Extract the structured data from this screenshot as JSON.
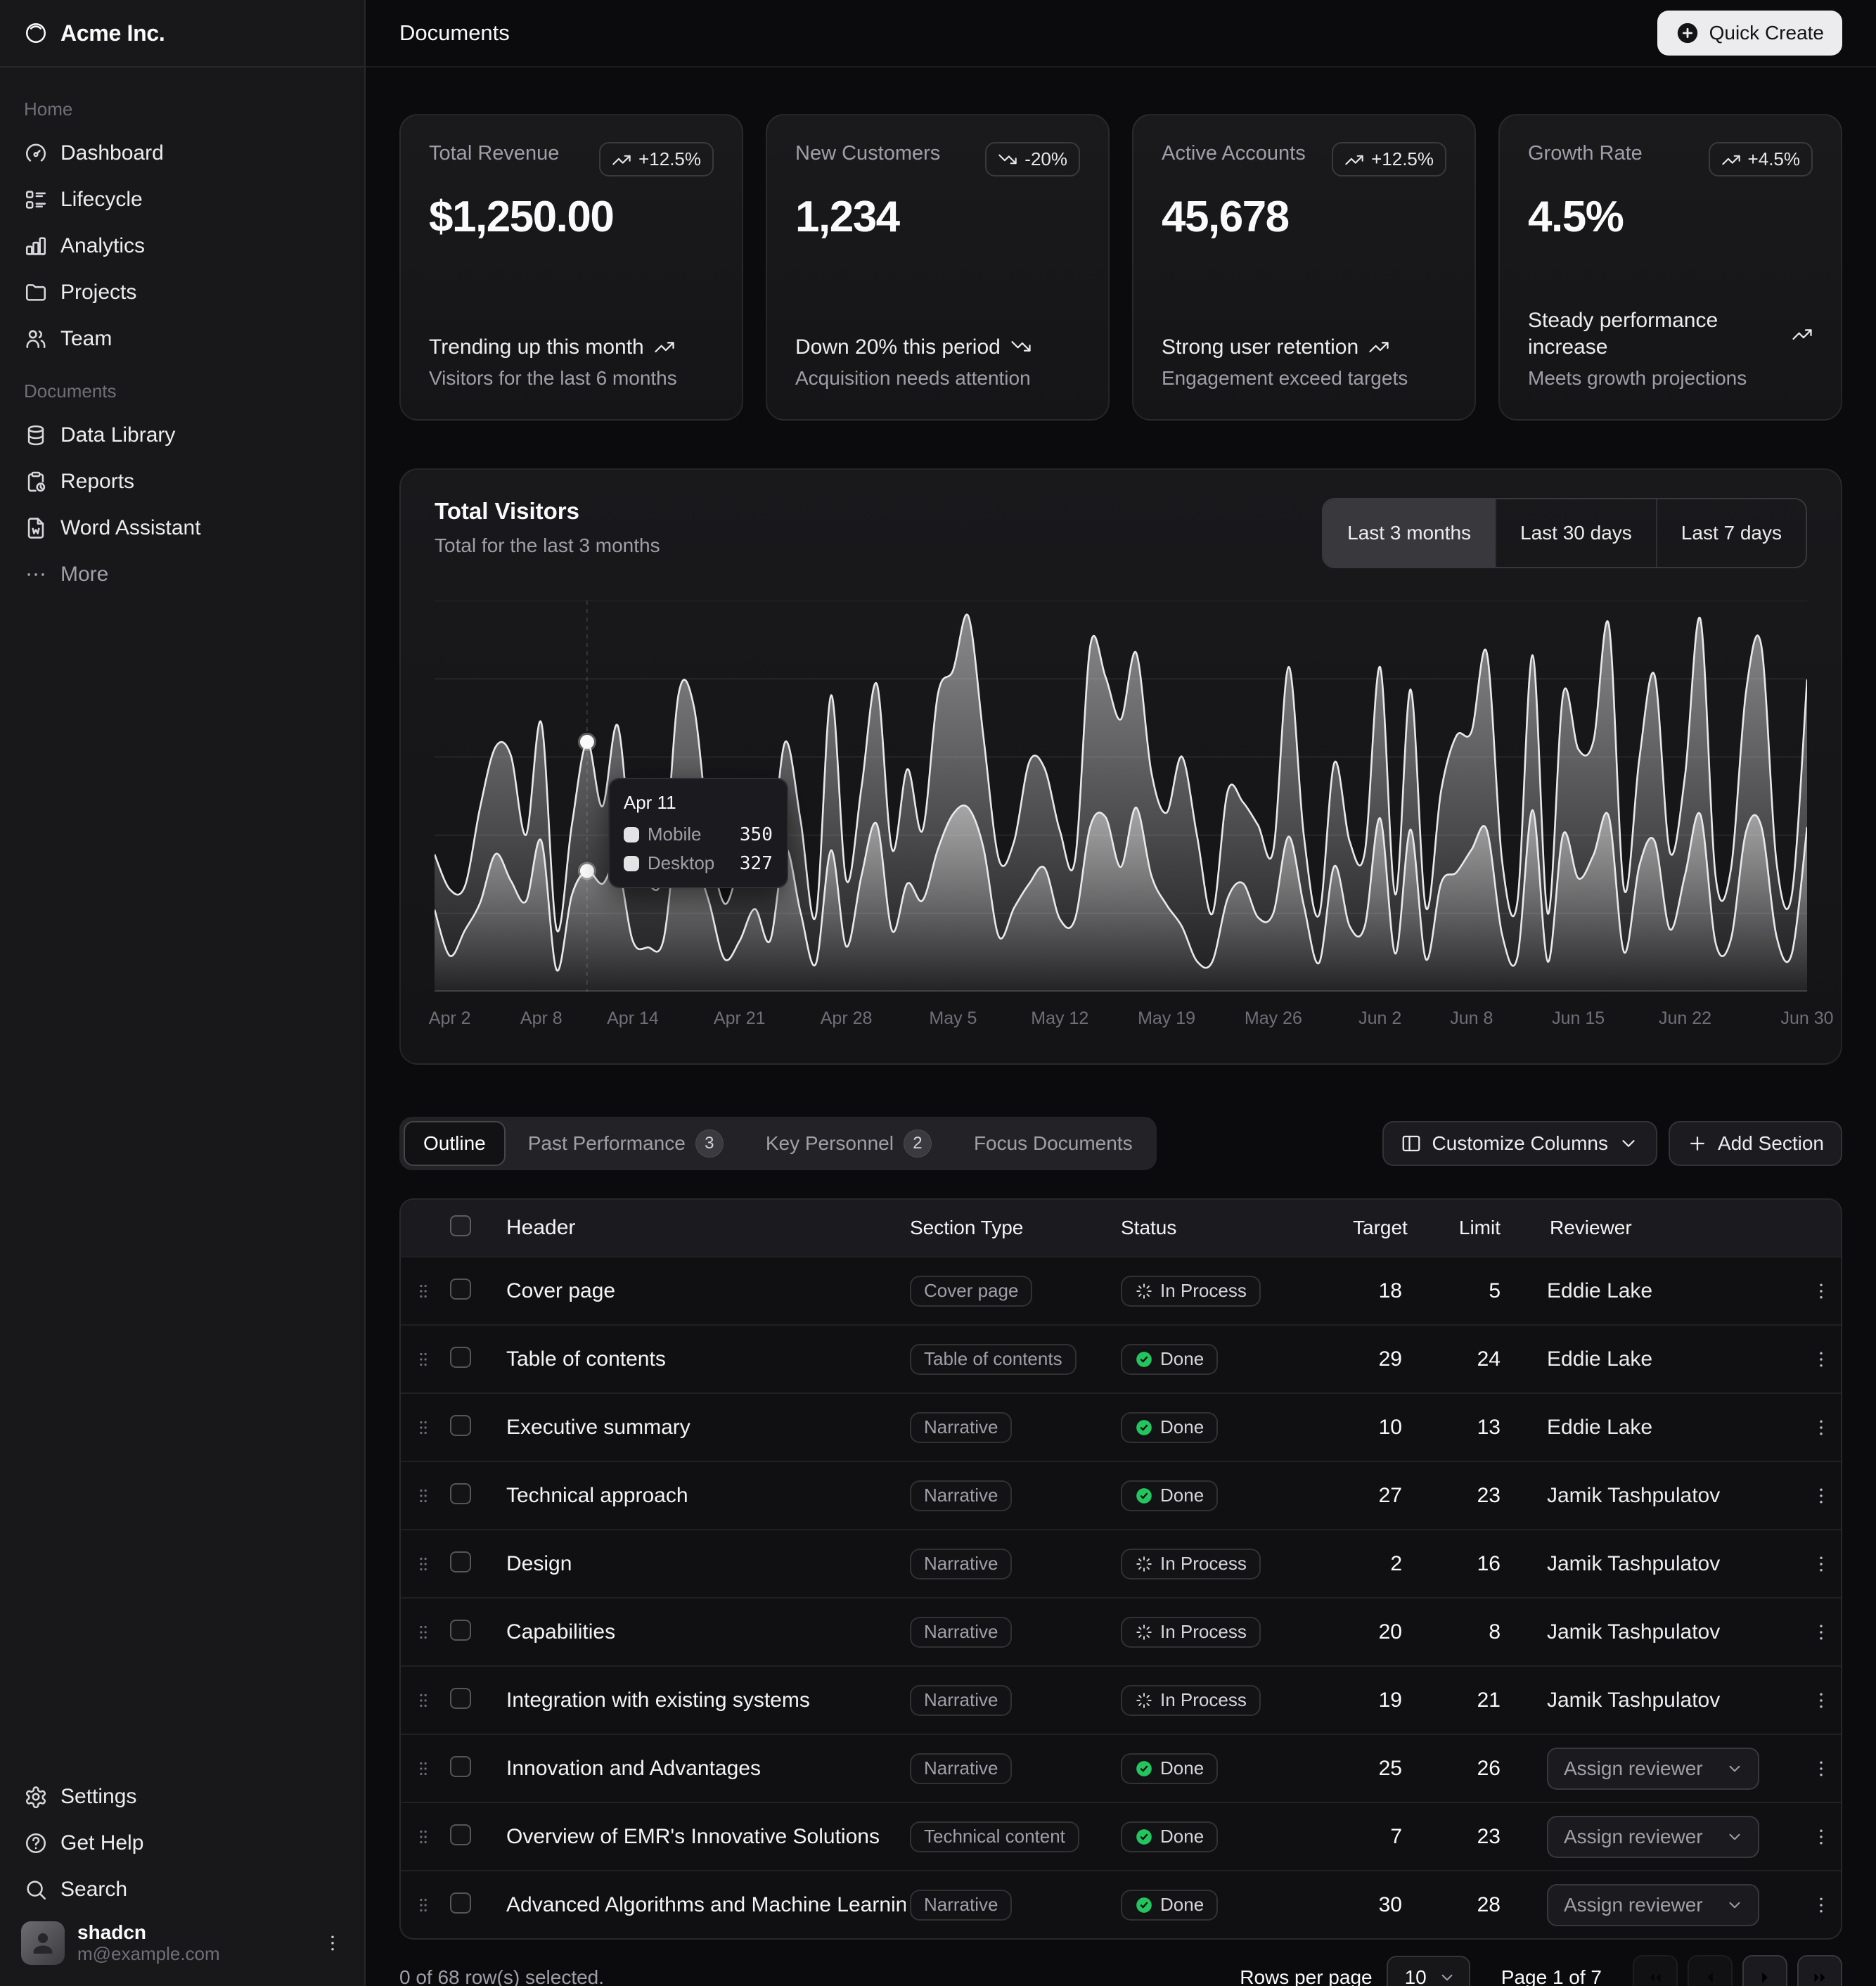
{
  "brand": {
    "name": "Acme Inc."
  },
  "header": {
    "title": "Documents",
    "quick_create": "Quick Create"
  },
  "sidebar": {
    "sections": [
      {
        "label": "Home",
        "items": [
          {
            "icon": "dashboard",
            "label": "Dashboard"
          },
          {
            "icon": "list-details",
            "label": "Lifecycle"
          },
          {
            "icon": "chart-bar",
            "label": "Analytics"
          },
          {
            "icon": "folder",
            "label": "Projects"
          },
          {
            "icon": "users",
            "label": "Team"
          }
        ]
      },
      {
        "label": "Documents",
        "items": [
          {
            "icon": "database",
            "label": "Data Library"
          },
          {
            "icon": "report",
            "label": "Reports"
          },
          {
            "icon": "file-word",
            "label": "Word Assistant"
          },
          {
            "icon": "dots",
            "label": "More",
            "dim": true
          }
        ]
      }
    ],
    "footer_items": [
      {
        "icon": "settings",
        "label": "Settings"
      },
      {
        "icon": "help",
        "label": "Get Help"
      },
      {
        "icon": "search",
        "label": "Search"
      }
    ],
    "user": {
      "name": "shadcn",
      "email": "m@example.com"
    }
  },
  "stat_cards": [
    {
      "label": "Total Revenue",
      "badge": "+12.5%",
      "trend": "up",
      "value": "$1,250.00",
      "footer_title": "Trending up this month",
      "footer_sub": "Visitors for the last 6 months"
    },
    {
      "label": "New Customers",
      "badge": "-20%",
      "trend": "down",
      "value": "1,234",
      "footer_title": "Down 20% this period",
      "footer_sub": "Acquisition needs attention"
    },
    {
      "label": "Active Accounts",
      "badge": "+12.5%",
      "trend": "up",
      "value": "45,678",
      "footer_title": "Strong user retention",
      "footer_sub": "Engagement exceed targets"
    },
    {
      "label": "Growth Rate",
      "badge": "+4.5%",
      "trend": "up",
      "value": "4.5%",
      "footer_title": "Steady performance increase",
      "footer_sub": "Meets growth projections"
    }
  ],
  "chart": {
    "title": "Total Visitors",
    "subtitle": "Total for the last 3 months",
    "range_options": [
      "Last 3 months",
      "Last 30 days",
      "Last 7 days"
    ],
    "active_range": "Last 3 months",
    "x_ticks": [
      "Apr 2",
      "Apr 8",
      "Apr 14",
      "Apr 21",
      "Apr 28",
      "May 5",
      "May 12",
      "May 19",
      "May 26",
      "Jun 2",
      "Jun 8",
      "Jun 15",
      "Jun 22",
      "Jun 30"
    ],
    "tick_indices": [
      1,
      7,
      13,
      20,
      27,
      34,
      41,
      48,
      55,
      62,
      68,
      75,
      82,
      90
    ],
    "tooltip": {
      "date": "Apr 11",
      "rows": [
        {
          "label": "Mobile",
          "value": "350"
        },
        {
          "label": "Desktop",
          "value": "327"
        }
      ]
    }
  },
  "chart_data": {
    "type": "area",
    "stacked": true,
    "x_range": [
      "Apr 1",
      "Jun 30"
    ],
    "ylim": [
      0,
      1060
    ],
    "grid": true,
    "active_point": {
      "index": 10,
      "date": "Apr 11",
      "mobile": 350,
      "desktop": 327
    },
    "series": [
      {
        "name": "Desktop",
        "values": [
          222,
          97,
          167,
          242,
          373,
          301,
          245,
          409,
          59,
          261,
          327,
          292,
          342,
          137,
          120,
          138,
          446,
          364,
          243,
          89,
          137,
          224,
          138,
          387,
          215,
          75,
          383,
          122,
          315,
          454,
          165,
          293,
          247,
          385,
          481,
          498,
          388,
          149,
          227,
          293,
          335,
          197,
          197,
          448,
          473,
          338,
          499,
          315,
          235,
          177,
          82,
          81,
          252,
          294,
          201,
          213,
          420,
          233,
          78,
          340,
          178,
          178,
          470,
          103,
          439,
          88,
          294,
          323,
          385,
          438,
          155,
          92,
          492,
          81,
          426,
          307,
          371,
          475,
          107,
          341,
          408,
          169,
          317,
          480,
          132,
          141,
          434,
          448,
          149,
          103,
          446
        ]
      },
      {
        "name": "Mobile",
        "values": [
          150,
          180,
          120,
          260,
          290,
          340,
          180,
          320,
          110,
          190,
          350,
          210,
          380,
          220,
          170,
          190,
          360,
          410,
          180,
          150,
          200,
          170,
          230,
          290,
          250,
          130,
          420,
          180,
          240,
          380,
          220,
          310,
          190,
          420,
          390,
          520,
          300,
          210,
          180,
          330,
          270,
          240,
          160,
          490,
          380,
          400,
          420,
          280,
          250,
          460,
          340,
          130,
          290,
          220,
          250,
          170,
          460,
          190,
          130,
          280,
          230,
          200,
          410,
          160,
          380,
          140,
          250,
          370,
          320,
          480,
          200,
          150,
          420,
          130,
          380,
          350,
          310,
          520,
          170,
          290,
          450,
          210,
          270,
          530,
          180,
          190,
          380,
          490,
          200,
          160,
          400
        ]
      }
    ]
  },
  "tabs": {
    "items": [
      {
        "label": "Outline",
        "active": true
      },
      {
        "label": "Past Performance",
        "badge": "3"
      },
      {
        "label": "Key Personnel",
        "badge": "2"
      },
      {
        "label": "Focus Documents"
      }
    ],
    "customize_columns": "Customize Columns",
    "add_section": "Add Section"
  },
  "table": {
    "columns": [
      "Header",
      "Section Type",
      "Status",
      "Target",
      "Limit",
      "Reviewer"
    ],
    "rows": [
      {
        "header": "Cover page",
        "type": "Cover page",
        "status": "In Process",
        "target": "18",
        "limit": "5",
        "reviewer": "Eddie Lake",
        "assign": false
      },
      {
        "header": "Table of contents",
        "type": "Table of contents",
        "status": "Done",
        "target": "29",
        "limit": "24",
        "reviewer": "Eddie Lake",
        "assign": false
      },
      {
        "header": "Executive summary",
        "type": "Narrative",
        "status": "Done",
        "target": "10",
        "limit": "13",
        "reviewer": "Eddie Lake",
        "assign": false
      },
      {
        "header": "Technical approach",
        "type": "Narrative",
        "status": "Done",
        "target": "27",
        "limit": "23",
        "reviewer": "Jamik Tashpulatov",
        "assign": false
      },
      {
        "header": "Design",
        "type": "Narrative",
        "status": "In Process",
        "target": "2",
        "limit": "16",
        "reviewer": "Jamik Tashpulatov",
        "assign": false
      },
      {
        "header": "Capabilities",
        "type": "Narrative",
        "status": "In Process",
        "target": "20",
        "limit": "8",
        "reviewer": "Jamik Tashpulatov",
        "assign": false
      },
      {
        "header": "Integration with existing systems",
        "type": "Narrative",
        "status": "In Process",
        "target": "19",
        "limit": "21",
        "reviewer": "Jamik Tashpulatov",
        "assign": false
      },
      {
        "header": "Innovation and Advantages",
        "type": "Narrative",
        "status": "Done",
        "target": "25",
        "limit": "26",
        "reviewer": "Assign reviewer",
        "assign": true
      },
      {
        "header": "Overview of EMR's Innovative Solutions",
        "type": "Technical content",
        "status": "Done",
        "target": "7",
        "limit": "23",
        "reviewer": "Assign reviewer",
        "assign": true
      },
      {
        "header": "Advanced Algorithms and Machine Learning",
        "type": "Narrative",
        "status": "Done",
        "target": "30",
        "limit": "28",
        "reviewer": "Assign reviewer",
        "assign": true
      }
    ],
    "footer": {
      "selected": "0 of 68 row(s) selected.",
      "rows_per_page_label": "Rows per page",
      "rows_per_page": "10",
      "page_info": "Page 1 of 7"
    }
  },
  "colors": {
    "status_done_green": "#22c55e",
    "series_stroke": "#e9e9ec"
  }
}
